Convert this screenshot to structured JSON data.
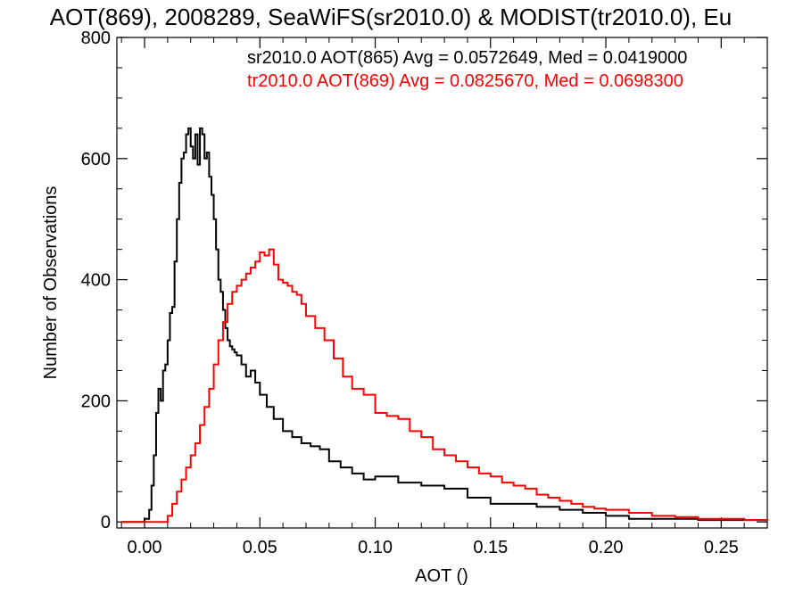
{
  "chart_data": {
    "type": "line",
    "title": "AOT(869), 2008289, SeaWiFS(sr2010.0) & MODIST(tr2010.0), Eu",
    "xlabel": "AOT ()",
    "ylabel": "Number of Observations",
    "xlim": [
      -0.012,
      0.27
    ],
    "ylim": [
      -10,
      800
    ],
    "x_ticks": [
      0.0,
      0.05,
      0.1,
      0.15,
      0.2,
      0.25
    ],
    "x_tick_labels": [
      "0.00",
      "0.05",
      "0.10",
      "0.15",
      "0.20",
      "0.25"
    ],
    "y_ticks": [
      0,
      200,
      400,
      600,
      800
    ],
    "y_tick_labels": [
      "0",
      "200",
      "400",
      "600",
      "800"
    ],
    "step": true,
    "grid": false,
    "annotations": [
      {
        "text": "sr2010.0 AOT(865) Avg = 0.0572649, Med = 0.0419000",
        "color": "#000000"
      },
      {
        "text": "tr2010.0 AOT(869) Avg = 0.0825670, Med = 0.0698300",
        "color": "#ff0000"
      }
    ],
    "series": [
      {
        "color": "#000000",
        "x": [
          -0.01,
          0.0,
          0.002,
          0.003,
          0.004,
          0.005,
          0.006,
          0.007,
          0.008,
          0.009,
          0.01,
          0.011,
          0.012,
          0.013,
          0.014,
          0.015,
          0.016,
          0.017,
          0.018,
          0.019,
          0.02,
          0.021,
          0.022,
          0.023,
          0.024,
          0.025,
          0.026,
          0.027,
          0.028,
          0.029,
          0.03,
          0.031,
          0.032,
          0.033,
          0.034,
          0.035,
          0.036,
          0.037,
          0.038,
          0.039,
          0.04,
          0.042,
          0.044,
          0.046,
          0.048,
          0.05,
          0.053,
          0.056,
          0.06,
          0.064,
          0.068,
          0.072,
          0.076,
          0.08,
          0.085,
          0.09,
          0.095,
          0.1,
          0.11,
          0.12,
          0.13,
          0.14,
          0.15,
          0.16,
          0.17,
          0.18,
          0.19,
          0.2,
          0.21,
          0.22,
          0.24,
          0.27
        ],
        "values": [
          0,
          5,
          20,
          60,
          110,
          180,
          220,
          200,
          250,
          260,
          300,
          345,
          355,
          430,
          500,
          560,
          600,
          610,
          640,
          650,
          620,
          600,
          640,
          590,
          650,
          640,
          600,
          610,
          570,
          540,
          500,
          450,
          400,
          380,
          350,
          320,
          300,
          290,
          285,
          280,
          275,
          260,
          240,
          250,
          230,
          210,
          190,
          170,
          150,
          140,
          130,
          125,
          120,
          100,
          90,
          80,
          70,
          75,
          65,
          60,
          55,
          40,
          30,
          30,
          25,
          20,
          15,
          10,
          5,
          5,
          3,
          2
        ]
      },
      {
        "color": "#ff0000",
        "x": [
          -0.01,
          0.01,
          0.012,
          0.014,
          0.016,
          0.018,
          0.02,
          0.022,
          0.024,
          0.026,
          0.028,
          0.03,
          0.032,
          0.034,
          0.036,
          0.038,
          0.04,
          0.042,
          0.044,
          0.046,
          0.048,
          0.05,
          0.052,
          0.054,
          0.056,
          0.058,
          0.06,
          0.062,
          0.064,
          0.066,
          0.068,
          0.07,
          0.074,
          0.078,
          0.082,
          0.086,
          0.09,
          0.095,
          0.1,
          0.105,
          0.11,
          0.115,
          0.12,
          0.125,
          0.13,
          0.135,
          0.14,
          0.145,
          0.15,
          0.155,
          0.16,
          0.165,
          0.17,
          0.175,
          0.18,
          0.185,
          0.19,
          0.195,
          0.2,
          0.21,
          0.22,
          0.23,
          0.24,
          0.25,
          0.26,
          0.27
        ],
        "values": [
          0,
          10,
          30,
          50,
          70,
          90,
          110,
          130,
          160,
          190,
          220,
          260,
          300,
          330,
          360,
          380,
          390,
          400,
          410,
          420,
          430,
          445,
          440,
          450,
          425,
          400,
          395,
          390,
          380,
          375,
          360,
          340,
          320,
          300,
          270,
          240,
          220,
          210,
          180,
          175,
          170,
          150,
          140,
          120,
          110,
          100,
          90,
          80,
          75,
          65,
          60,
          55,
          45,
          40,
          35,
          30,
          25,
          22,
          20,
          15,
          10,
          8,
          5,
          5,
          3,
          2
        ]
      }
    ]
  }
}
